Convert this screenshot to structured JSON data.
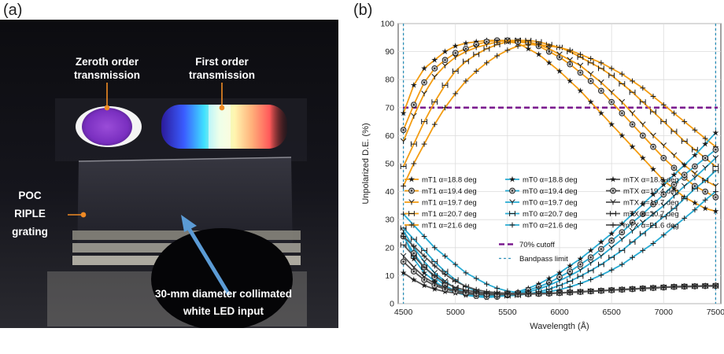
{
  "panel_a": {
    "label": "(a)",
    "annotations": {
      "zeroth_line1": "Zeroth order",
      "zeroth_line2": "transmission",
      "first_line1": "First order",
      "first_line2": "transmission",
      "poc_line1": "POC",
      "poc_line2": "RIPLE",
      "poc_line3": "grating",
      "input_line1": "30-mm diameter collimated",
      "input_line2": "white LED input"
    },
    "colors": {
      "annotation_pointer": "#f08a24",
      "input_arrow": "#5b9bd5"
    }
  },
  "panel_b": {
    "label": "(b)"
  },
  "chart_data": {
    "type": "line",
    "xlabel": "Wavelength (Å)",
    "ylabel": "Unpolarized D.E. (%)",
    "xlim": [
      4450,
      7550
    ],
    "ylim": [
      0,
      100
    ],
    "xticks": [
      4500,
      5000,
      5500,
      6000,
      6500,
      7000,
      7500
    ],
    "yticks": [
      0,
      10,
      20,
      30,
      40,
      50,
      60,
      70,
      80,
      90,
      100
    ],
    "grid": true,
    "legend_position": "lower-left",
    "x": [
      4500,
      4600,
      4700,
      4800,
      4900,
      5000,
      5100,
      5200,
      5300,
      5400,
      5500,
      5600,
      5700,
      5800,
      5900,
      6000,
      6100,
      6200,
      6300,
      6400,
      6500,
      6600,
      6700,
      6800,
      6900,
      7000,
      7100,
      7200,
      7300,
      7400,
      7500
    ],
    "series": [
      {
        "name": "mT1 α=18.8 deg",
        "color": "#f39c12",
        "marker": "star",
        "values": [
          68,
          78,
          84,
          87,
          90,
          92,
          93,
          93.5,
          94,
          94,
          93.5,
          93,
          91,
          89,
          86,
          83,
          79.5,
          76,
          72,
          68,
          64,
          60,
          56,
          52,
          48,
          44,
          41,
          38,
          36,
          34,
          33
        ]
      },
      {
        "name": "mT1 α=19.4 deg",
        "color": "#f39c12",
        "marker": "circle",
        "values": [
          62,
          71,
          79,
          84,
          87,
          89.5,
          91,
          92.5,
          93.5,
          94,
          94,
          93.5,
          93,
          92,
          90,
          88,
          85.5,
          82.5,
          79.5,
          76,
          72,
          68,
          64,
          60,
          56,
          52,
          48.5,
          45,
          42,
          40,
          38
        ]
      },
      {
        "name": "mT1 α=19.7 deg",
        "color": "#f39c12",
        "marker": "y",
        "values": [
          58,
          67,
          75,
          81,
          85,
          88,
          90,
          91.5,
          92.5,
          93.5,
          94,
          94,
          93.5,
          92.5,
          91,
          89,
          87,
          85,
          82,
          79,
          75.5,
          72,
          68,
          64,
          60,
          56.5,
          53,
          49.5,
          46.5,
          44,
          42
        ]
      },
      {
        "name": "mT1 α=20.7 deg",
        "color": "#f39c12",
        "marker": "h",
        "values": [
          49,
          57,
          65,
          72,
          78,
          83,
          86.5,
          89,
          91,
          92.5,
          93.5,
          94,
          94,
          93.5,
          92.5,
          91.5,
          90,
          88,
          86,
          84,
          81.5,
          78.5,
          75.5,
          72,
          68.5,
          65,
          61.5,
          58,
          55,
          52,
          49
        ]
      },
      {
        "name": "mT1 α=21.6 deg",
        "color": "#f39c12",
        "marker": "plus",
        "values": [
          42,
          50,
          57,
          64,
          70,
          75,
          79.5,
          83,
          86,
          88.5,
          90.5,
          92,
          92.5,
          92.5,
          92,
          91.5,
          90.5,
          89,
          87.5,
          86,
          84,
          82,
          79.5,
          77,
          74,
          71,
          68,
          65,
          62,
          59,
          56
        ]
      },
      {
        "name": "mT0 α=18.8 deg",
        "color": "#29abd3",
        "marker": "star",
        "values": [
          25,
          16,
          11,
          8,
          5.5,
          4,
          3,
          2.5,
          2.2,
          2.5,
          3.2,
          4.2,
          5.5,
          7,
          9,
          11,
          13.5,
          16,
          19,
          22,
          25,
          28.5,
          32,
          35.5,
          39,
          42.5,
          46,
          49.5,
          53,
          57,
          61
        ]
      },
      {
        "name": "mT0 α=19.4 deg",
        "color": "#29abd3",
        "marker": "circle",
        "values": [
          24,
          18,
          13,
          9.5,
          6.5,
          4.5,
          3.5,
          2.8,
          2.5,
          2.5,
          3,
          3.8,
          4.8,
          6,
          7.5,
          9.5,
          11.5,
          14,
          16.5,
          19.5,
          22.5,
          25.5,
          29,
          32,
          35.5,
          39,
          42.5,
          46,
          49,
          52,
          55
        ]
      },
      {
        "name": "mT0 α=19.7 deg",
        "color": "#29abd3",
        "marker": "y",
        "values": [
          26,
          20,
          15,
          11,
          8,
          5.5,
          4,
          3.2,
          2.8,
          2.6,
          2.8,
          3.4,
          4.2,
          5.2,
          6.6,
          8.2,
          10,
          12,
          14.5,
          17,
          20,
          23,
          26,
          29,
          32,
          35,
          38.5,
          42,
          45,
          48.5,
          52
        ]
      },
      {
        "name": "mT0 α=20.7 deg",
        "color": "#29abd3",
        "marker": "h",
        "values": [
          27,
          23,
          19,
          15,
          11.5,
          8.5,
          6,
          4.5,
          3.5,
          3,
          2.8,
          3,
          3.5,
          4.2,
          5.2,
          6.5,
          8,
          9.8,
          11.8,
          14,
          16.5,
          19,
          22,
          25,
          28,
          31,
          34,
          37.5,
          41,
          44,
          47.5
        ]
      },
      {
        "name": "mT0 α=21.6 deg",
        "color": "#29abd3",
        "marker": "plus",
        "values": [
          32,
          28,
          24,
          20,
          17,
          14,
          11,
          9,
          7,
          5.5,
          4.5,
          4,
          3.6,
          3.8,
          4.3,
          5,
          6,
          7.2,
          8.6,
          10.2,
          12,
          14,
          16.5,
          19,
          21.5,
          24.5,
          27.5,
          30.5,
          33.5,
          37,
          40
        ]
      },
      {
        "name": "mTX α=18.8 deg",
        "color": "#555555",
        "marker": "star",
        "values": [
          11,
          8.5,
          6.5,
          5.2,
          4.3,
          3.8,
          3.5,
          3.3,
          3.2,
          3.2,
          3.2,
          3.3,
          3.4,
          3.5,
          3.7,
          3.9,
          4.1,
          4.3,
          4.5,
          4.7,
          4.9,
          5.1,
          5.3,
          5.5,
          5.7,
          5.9,
          6.1,
          6.2,
          6.3,
          6.4,
          6.5
        ]
      },
      {
        "name": "mTX α=19.4 deg",
        "color": "#555555",
        "marker": "circle",
        "values": [
          15,
          11.5,
          8.5,
          6.5,
          5.2,
          4.4,
          3.9,
          3.6,
          3.4,
          3.3,
          3.3,
          3.3,
          3.4,
          3.5,
          3.6,
          3.8,
          4,
          4.2,
          4.4,
          4.6,
          4.8,
          5,
          5.2,
          5.4,
          5.6,
          5.8,
          6,
          6.1,
          6.2,
          6.3,
          6.4
        ]
      },
      {
        "name": "mTX α=19.7 deg",
        "color": "#555555",
        "marker": "y",
        "values": [
          17,
          13,
          9.5,
          7.2,
          5.6,
          4.7,
          4.1,
          3.7,
          3.5,
          3.4,
          3.3,
          3.3,
          3.4,
          3.5,
          3.6,
          3.8,
          4,
          4.2,
          4.4,
          4.6,
          4.8,
          5,
          5.2,
          5.4,
          5.6,
          5.8,
          6,
          6.1,
          6.2,
          6.3,
          6.4
        ]
      },
      {
        "name": "mTX α=20.7 deg",
        "color": "#555555",
        "marker": "h",
        "values": [
          21,
          17,
          13,
          10,
          7.5,
          5.8,
          4.8,
          4.2,
          3.8,
          3.6,
          3.5,
          3.5,
          3.5,
          3.6,
          3.7,
          3.8,
          4,
          4.2,
          4.4,
          4.6,
          4.8,
          5,
          5.2,
          5.4,
          5.6,
          5.8,
          6,
          6.1,
          6.2,
          6.3,
          6.3
        ]
      },
      {
        "name": "mTX α=21.6 deg",
        "color": "#555555",
        "marker": "plus",
        "values": [
          24,
          20.5,
          17,
          13.5,
          10.5,
          8,
          6.2,
          5,
          4.3,
          3.9,
          3.7,
          3.6,
          3.6,
          3.6,
          3.7,
          3.8,
          4,
          4.2,
          4.4,
          4.6,
          4.8,
          5,
          5.2,
          5.4,
          5.6,
          5.8,
          5.9,
          6,
          6.1,
          6.2,
          6.2
        ]
      }
    ],
    "cutoff": {
      "name": "70% cutoff",
      "value": 70,
      "color": "#7b1b8f"
    },
    "bandpass": {
      "name": "Bandpass limit",
      "values": [
        4500,
        7500
      ],
      "color": "#2c8fb8"
    }
  }
}
